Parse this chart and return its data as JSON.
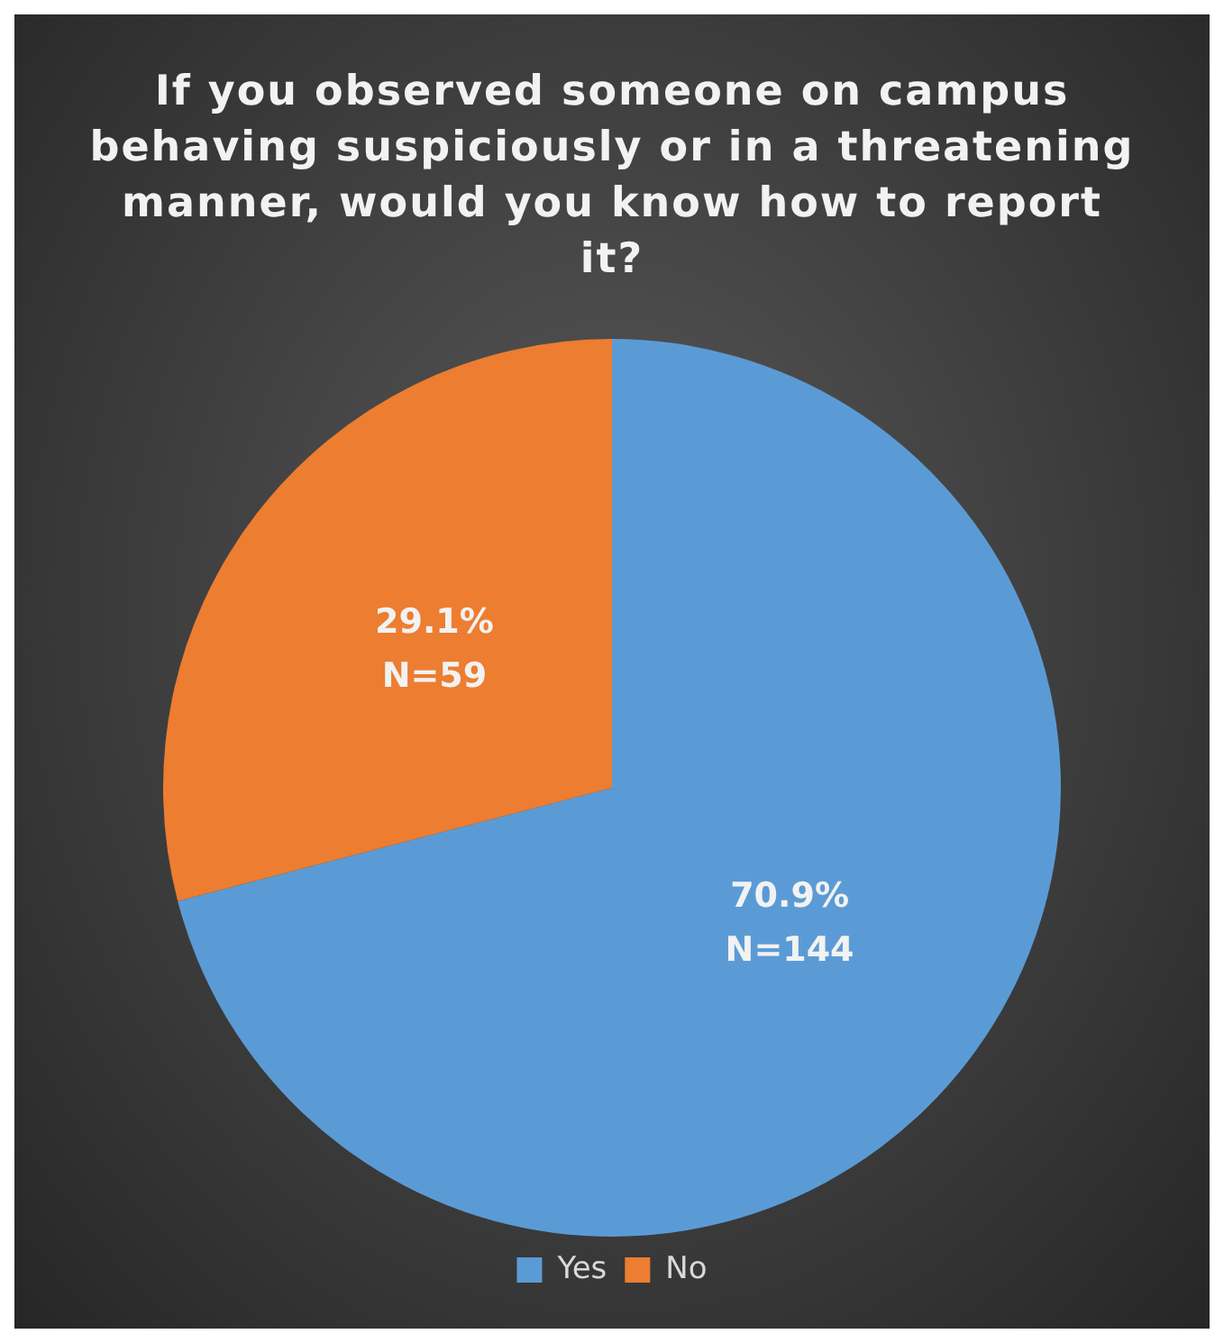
{
  "chart_data": {
    "type": "pie",
    "title": "If you observed someone on campus behaving suspiciously or in a threatening manner, would you know how to report it?",
    "categories": [
      "Yes",
      "No"
    ],
    "values": [
      144,
      59
    ],
    "colors": [
      "#5b9bd5",
      "#ed7d31"
    ],
    "value_labels": [
      "70.9%\nN=144",
      "29.1%\nN=59"
    ],
    "legend": "bottom"
  }
}
